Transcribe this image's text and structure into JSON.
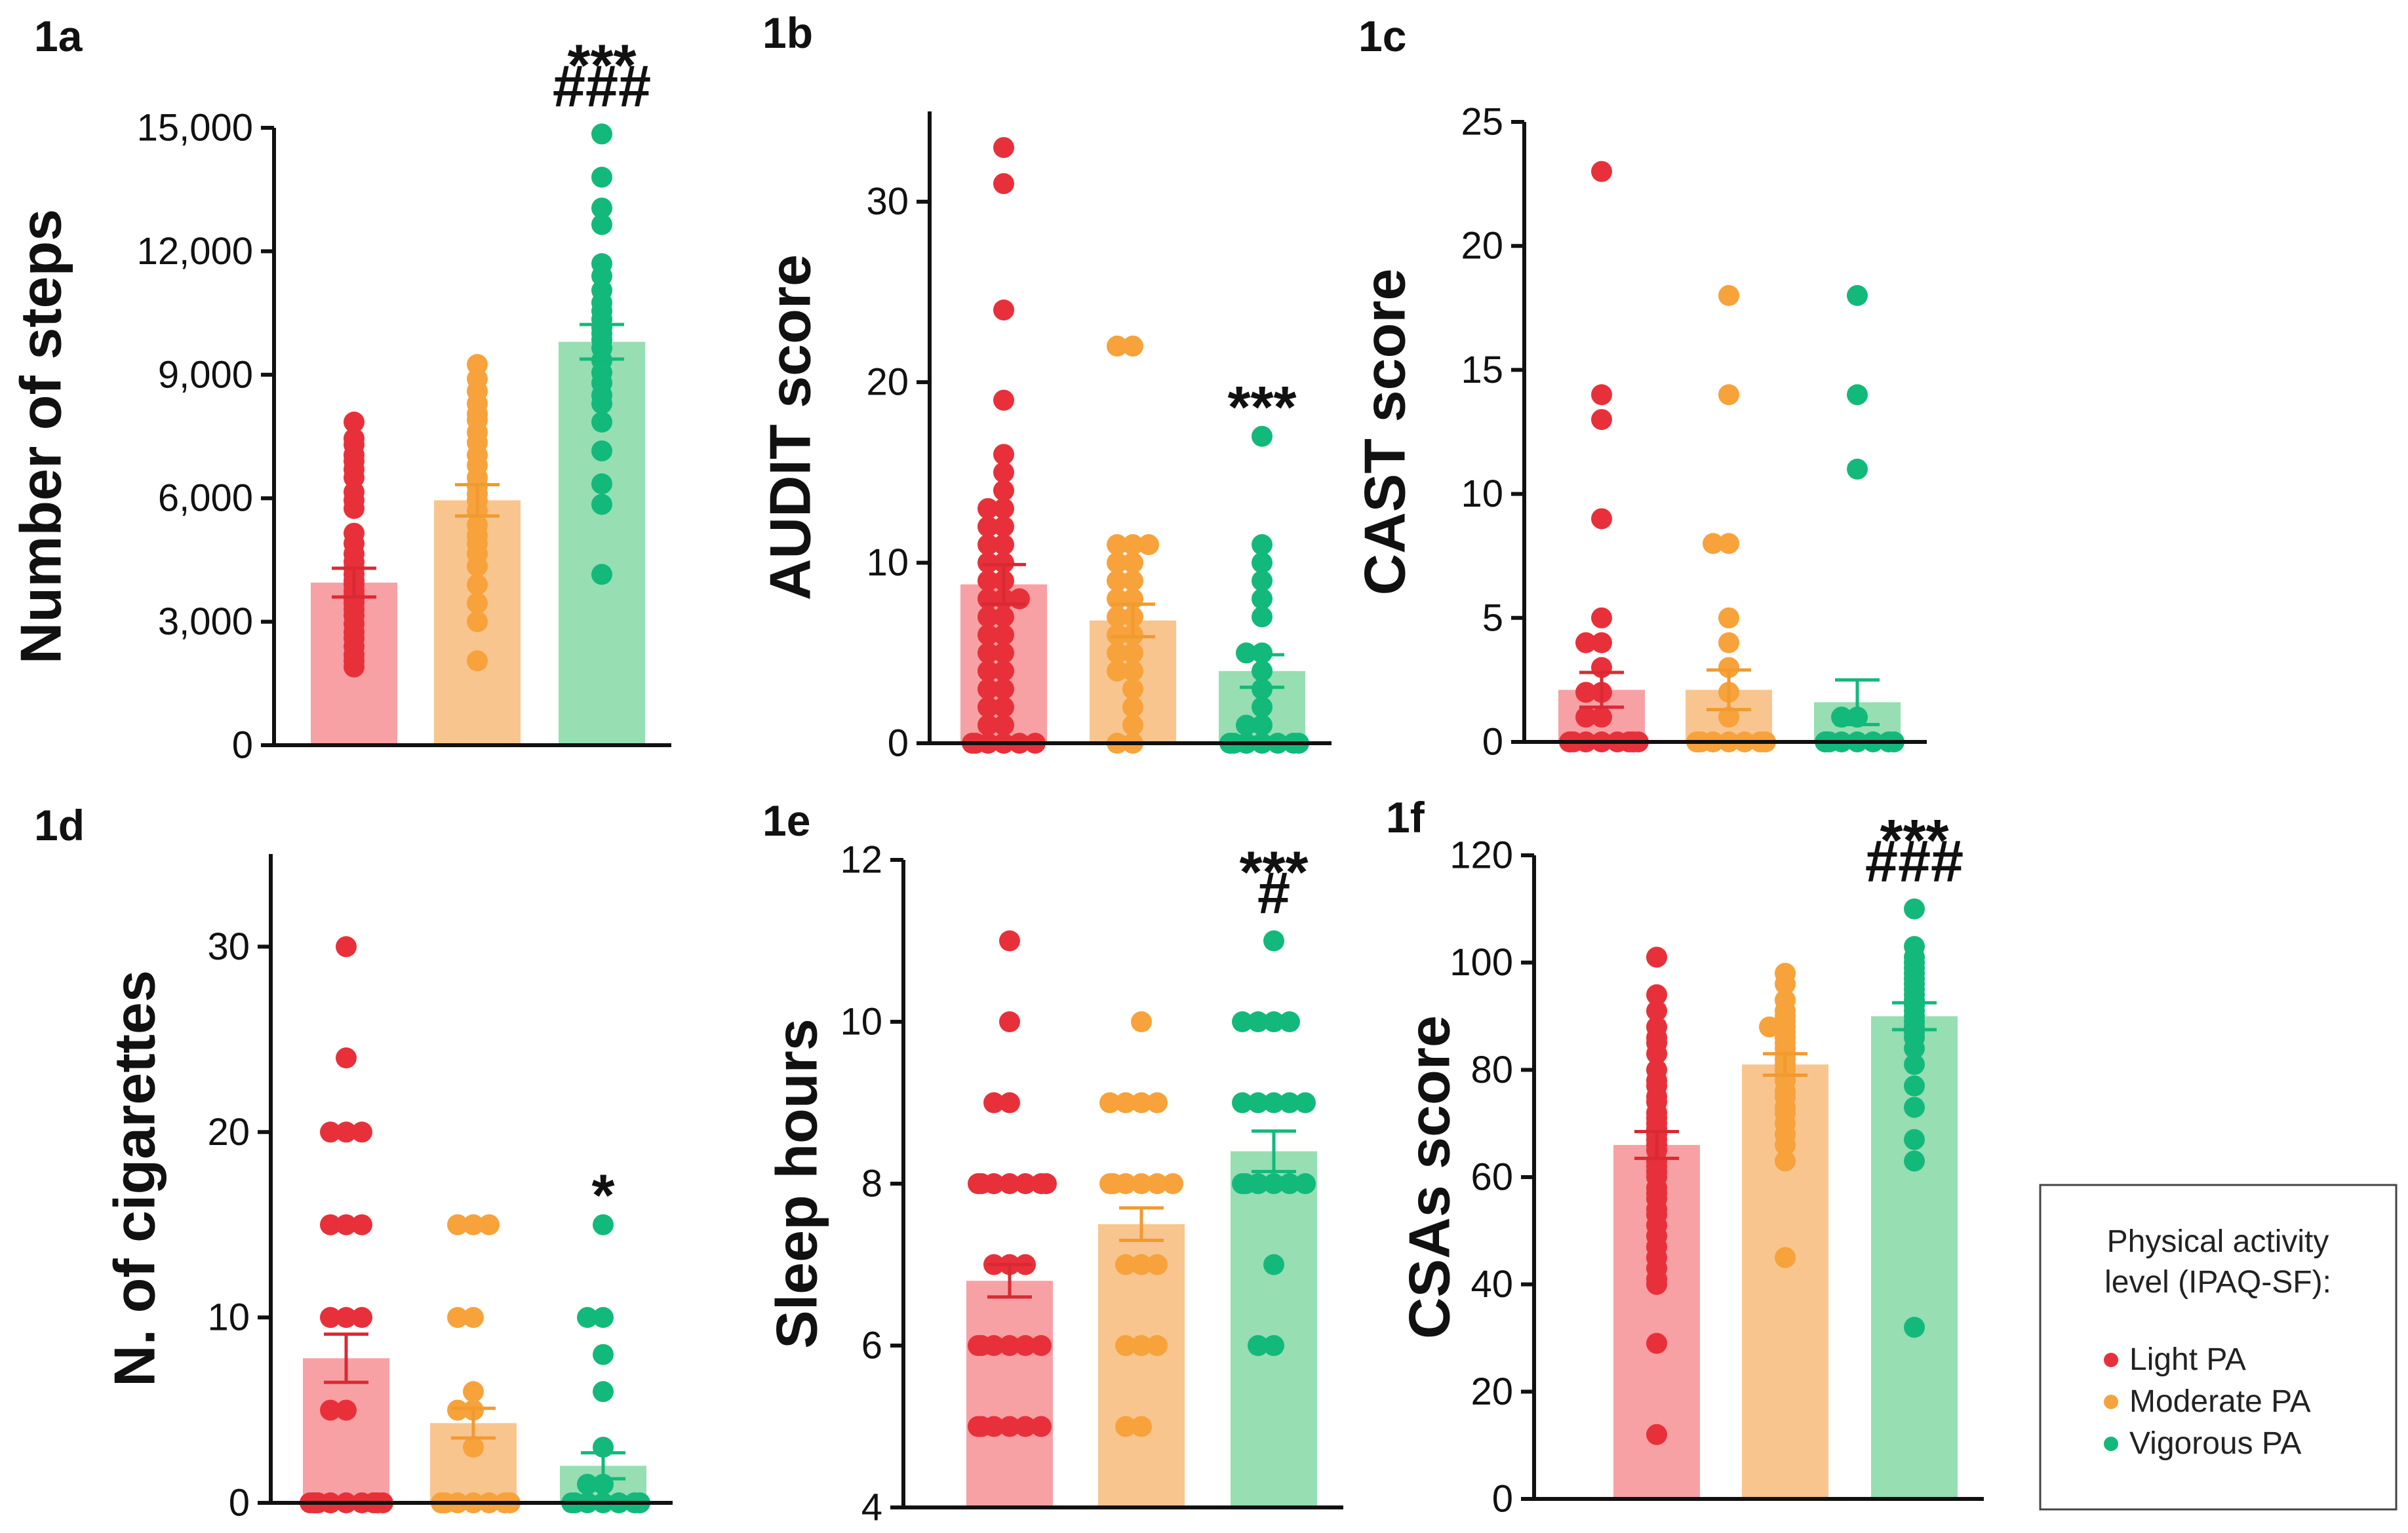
{
  "colors": {
    "light": {
      "point": "#e8303a",
      "bar": "#f7a1a5",
      "err": "#d92a34"
    },
    "moderate": {
      "point": "#f7a23a",
      "bar": "#f8c58f",
      "err": "#f09a30"
    },
    "vigorous": {
      "point": "#12b97b",
      "bar": "#97deb2",
      "err": "#12b97b"
    }
  },
  "legend": {
    "title_line1": "Physical activity",
    "title_line2": "level (IPAQ-SF):",
    "items": [
      {
        "label": "Light PA",
        "group": "light"
      },
      {
        "label": "Moderate PA",
        "group": "moderate"
      },
      {
        "label": "Vigorous PA",
        "group": "vigorous"
      }
    ]
  },
  "chart_data": [
    {
      "panel": "1a",
      "type": "bar",
      "ylabel": "Number of steps",
      "ylim": [
        0,
        15000
      ],
      "yticks": [
        "0",
        "3,000",
        "6,000",
        "9,000",
        "12,000",
        "15,000"
      ],
      "ytick_values": [
        0,
        3000,
        6000,
        9000,
        12000,
        15000
      ],
      "categories": [
        "Light PA",
        "Moderate PA",
        "Vigorous PA"
      ],
      "means": [
        3950,
        5950,
        9800
      ],
      "sem": [
        350,
        380,
        420
      ],
      "significance": [
        "",
        "",
        "***\n###"
      ],
      "points": [
        [
          7850,
          7450,
          7300,
          7050,
          6900,
          6700,
          6500,
          6150,
          5950,
          5750,
          5150,
          4900,
          4650,
          4450,
          4300,
          4150,
          4000,
          3900,
          3750,
          3650,
          3550,
          3450,
          3300,
          3150,
          2950,
          2750,
          2600,
          2400,
          2200,
          2050,
          1900
        ],
        [
          9250,
          8900,
          8600,
          8300,
          8050,
          7900,
          7600,
          7350,
          7050,
          6800,
          6500,
          6300,
          6100,
          5950,
          5700,
          5350,
          5100,
          4900,
          4650,
          4350,
          3900,
          3450,
          3000,
          2050
        ],
        [
          14850,
          13800,
          13050,
          12650,
          11700,
          11400,
          11050,
          10750,
          10550,
          10350,
          10150,
          10000,
          9850,
          9650,
          9350,
          9050,
          8800,
          8500,
          8300,
          7850,
          7150,
          6350,
          5850,
          4150
        ]
      ]
    },
    {
      "panel": "1b",
      "type": "bar",
      "ylabel": "AUDIT score",
      "ylim": [
        0,
        35
      ],
      "yticks": [
        "0",
        "10",
        "20",
        "30"
      ],
      "ytick_values": [
        0,
        10,
        20,
        30
      ],
      "categories": [
        "Light PA",
        "Moderate PA",
        "Vigorous PA"
      ],
      "means": [
        8.8,
        6.8,
        4.0
      ],
      "sem": [
        1.1,
        0.9,
        0.9
      ],
      "significance": [
        "",
        "",
        "***"
      ],
      "points": [
        [
          33,
          31,
          24,
          19,
          16,
          15,
          14,
          13,
          13,
          12,
          12,
          11,
          11,
          10,
          10,
          9,
          9,
          8,
          8,
          8,
          7,
          7,
          6,
          6,
          5,
          5,
          4,
          4,
          3,
          3,
          2,
          2,
          1,
          1,
          0,
          0,
          0,
          0,
          0,
          0
        ],
        [
          22,
          22,
          11,
          11,
          11,
          10,
          10,
          9,
          9,
          8,
          8,
          7,
          7,
          6,
          6,
          5,
          5,
          4,
          4,
          3,
          2,
          1,
          0,
          0
        ],
        [
          17,
          11,
          10,
          9,
          8,
          7,
          5,
          5,
          4,
          3,
          2,
          1,
          1,
          0,
          0,
          0,
          0,
          0,
          0,
          0,
          0
        ]
      ]
    },
    {
      "panel": "1c",
      "type": "bar",
      "ylabel": "CAST score",
      "ylim": [
        0,
        25
      ],
      "yticks": [
        "0",
        "5",
        "10",
        "15",
        "20",
        "25"
      ],
      "ytick_values": [
        0,
        5,
        10,
        15,
        20,
        25
      ],
      "categories": [
        "Light PA",
        "Moderate PA",
        "Vigorous PA"
      ],
      "means": [
        2.1,
        2.1,
        1.6
      ],
      "sem": [
        0.7,
        0.8,
        0.9
      ],
      "significance": [
        "",
        "",
        ""
      ],
      "points": [
        [
          23,
          14,
          13,
          9,
          5,
          4,
          4,
          3,
          2,
          2,
          1,
          1,
          0,
          0,
          0,
          0,
          0,
          0,
          0,
          0,
          0
        ],
        [
          18,
          14,
          8,
          8,
          5,
          4,
          3,
          2,
          1,
          0,
          0,
          0,
          0,
          0,
          0,
          0,
          0
        ],
        [
          18,
          14,
          11,
          1,
          1,
          0,
          0,
          0,
          0,
          0,
          0,
          0,
          0
        ]
      ]
    },
    {
      "panel": "1d",
      "type": "bar",
      "ylabel": "N. of cigarettes",
      "ylim": [
        0,
        35
      ],
      "yticks": [
        "0",
        "10",
        "20",
        "30"
      ],
      "ytick_values": [
        0,
        10,
        20,
        30
      ],
      "categories": [
        "Light PA",
        "Moderate PA",
        "Vigorous PA"
      ],
      "means": [
        7.8,
        4.3,
        2.0
      ],
      "sem": [
        1.3,
        0.8,
        0.7
      ],
      "significance": [
        "",
        "",
        "*"
      ],
      "points": [
        [
          30,
          24,
          20,
          20,
          20,
          15,
          15,
          15,
          10,
          10,
          10,
          5,
          5,
          0,
          0,
          0,
          0,
          0,
          0,
          0,
          0,
          0,
          0
        ],
        [
          15,
          15,
          15,
          10,
          10,
          6,
          5,
          5,
          3,
          0,
          0,
          0,
          0,
          0,
          0,
          0,
          0
        ],
        [
          15,
          10,
          10,
          8,
          6,
          3,
          1,
          1,
          0,
          0,
          0,
          0,
          0,
          0,
          0
        ]
      ]
    },
    {
      "panel": "1e",
      "type": "bar",
      "ylabel": "Sleep hours",
      "ylim": [
        4,
        12
      ],
      "yticks": [
        "4",
        "6",
        "8",
        "10",
        "12"
      ],
      "ytick_values": [
        4,
        6,
        8,
        10,
        12
      ],
      "categories": [
        "Light PA",
        "Moderate PA",
        "Vigorous PA"
      ],
      "means": [
        6.8,
        7.5,
        8.4
      ],
      "sem": [
        0.2,
        0.2,
        0.25
      ],
      "significance": [
        "",
        "",
        "***\n#"
      ],
      "points": [
        [
          11,
          10,
          9,
          9,
          8,
          8,
          8,
          8,
          8,
          8,
          8,
          7,
          7,
          7,
          6,
          6,
          6,
          6,
          6,
          6,
          5,
          5,
          5,
          5,
          5,
          5
        ],
        [
          10,
          9,
          9,
          9,
          9,
          8,
          8,
          8,
          8,
          8,
          8,
          7,
          7,
          7,
          6,
          6,
          6,
          5,
          5
        ],
        [
          11,
          10,
          10,
          10,
          10,
          9,
          9,
          9,
          9,
          9,
          8,
          8,
          8,
          8,
          8,
          8,
          7,
          6,
          6
        ]
      ]
    },
    {
      "panel": "1f",
      "type": "bar",
      "ylabel": "CSAs score",
      "ylim": [
        0,
        120
      ],
      "yticks": [
        "0",
        "20",
        "40",
        "60",
        "80",
        "100",
        "120"
      ],
      "ytick_values": [
        0,
        20,
        40,
        60,
        80,
        100,
        120
      ],
      "categories": [
        "Light PA",
        "Moderate PA",
        "Vigorous PA"
      ],
      "means": [
        66,
        81,
        90
      ],
      "sem": [
        2.5,
        2.0,
        2.5
      ],
      "significance": [
        "",
        "",
        "***\n###"
      ],
      "points": [
        [
          101,
          94,
          91,
          88,
          86,
          85,
          83,
          80,
          78,
          77,
          75,
          74,
          72,
          71,
          70,
          69,
          68,
          67,
          66,
          65,
          63,
          62,
          61,
          60,
          58,
          57,
          56,
          54,
          53,
          51,
          49,
          47,
          45,
          43,
          41,
          40,
          29,
          12
        ],
        [
          98,
          96,
          93,
          91,
          90,
          89,
          88,
          88,
          87,
          86,
          85,
          84,
          83,
          82,
          81,
          80,
          79,
          78,
          76,
          75,
          73,
          72,
          70,
          68,
          66,
          63,
          45
        ],
        [
          110,
          103,
          101,
          100,
          99,
          98,
          97,
          96,
          95,
          94,
          93,
          92,
          91,
          90,
          89,
          88,
          87,
          86,
          84,
          81,
          77,
          73,
          67,
          63,
          32
        ]
      ]
    }
  ]
}
